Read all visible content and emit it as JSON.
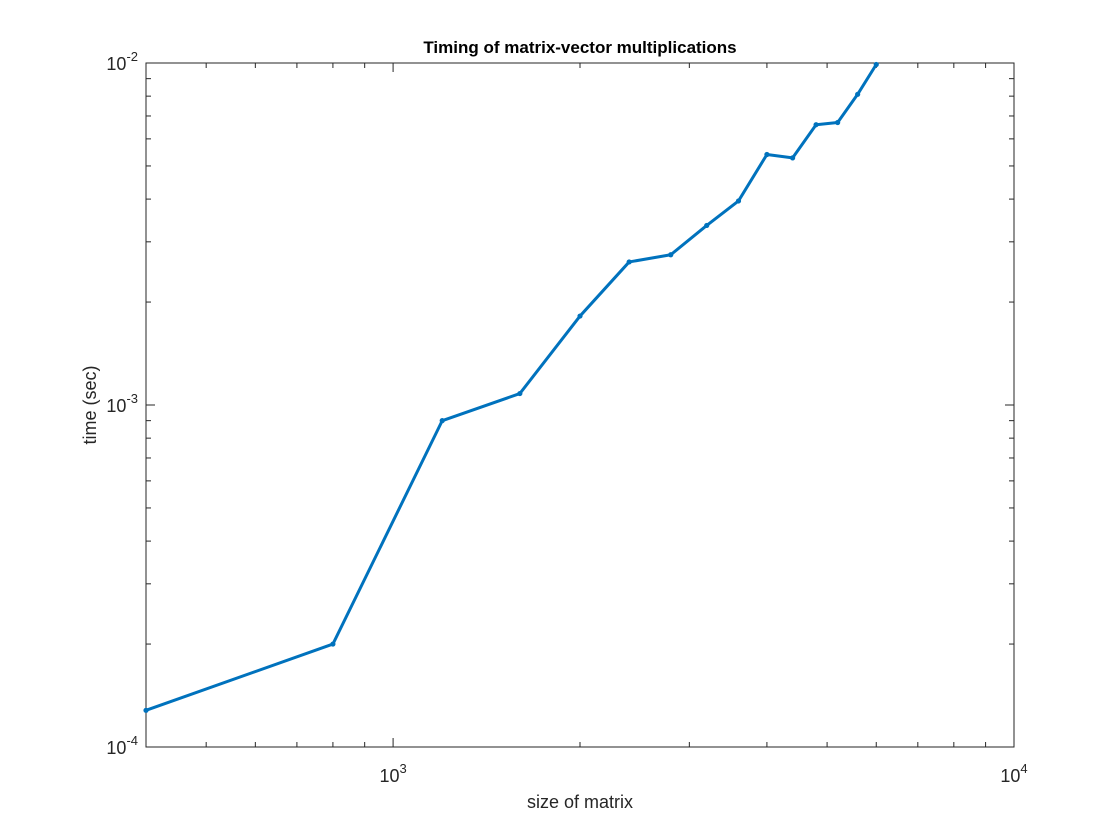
{
  "chart_data": {
    "type": "line",
    "title": "Timing of matrix-vector multiplications",
    "xlabel": "size of matrix",
    "ylabel": "time (sec)",
    "xscale": "log",
    "yscale": "log",
    "xlim": [
      400,
      10000
    ],
    "ylim": [
      0.0001,
      0.01
    ],
    "xticks": [
      {
        "value": 1000,
        "base": "10",
        "exp": "3"
      },
      {
        "value": 10000,
        "base": "10",
        "exp": "4"
      }
    ],
    "yticks": [
      {
        "value": 0.0001,
        "base": "10",
        "exp": "-4"
      },
      {
        "value": 0.001,
        "base": "10",
        "exp": "-3"
      },
      {
        "value": 0.01,
        "base": "10",
        "exp": "-2"
      }
    ],
    "grid": false,
    "line_color": "#0072BD",
    "series": [
      {
        "x": [
          400,
          800,
          1200,
          1600,
          2000,
          2400,
          2800,
          3200,
          3600,
          4000,
          4400,
          4800,
          5200,
          5600,
          6000
        ],
        "y": [
          0.000128,
          0.0002,
          0.0009,
          0.00108,
          0.00182,
          0.00262,
          0.00275,
          0.00335,
          0.00395,
          0.0054,
          0.00528,
          0.0066,
          0.0067,
          0.0081,
          0.0099
        ]
      }
    ]
  }
}
